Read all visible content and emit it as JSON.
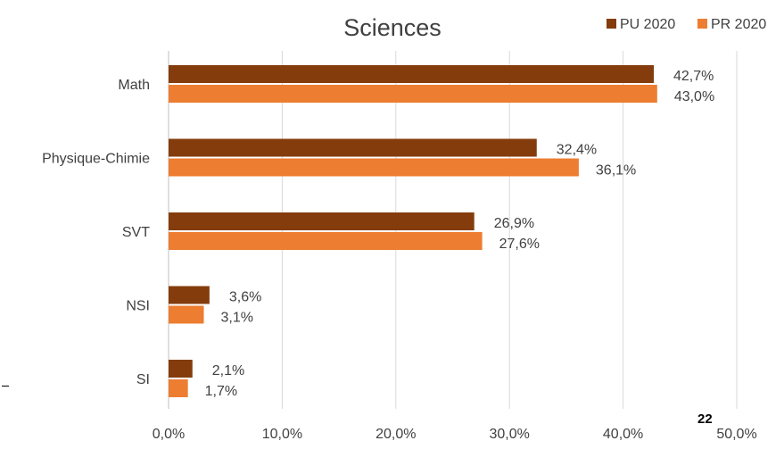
{
  "page": {
    "page_number": "22"
  },
  "chart_data": {
    "type": "bar",
    "orientation": "horizontal",
    "title": "Sciences",
    "xlabel": "",
    "ylabel": "",
    "categories": [
      "Math",
      "Physique-Chimie",
      "SVT",
      "NSI",
      "SI"
    ],
    "series": [
      {
        "name": "PU 2020",
        "color": "#843c0c",
        "values": [
          42.7,
          32.4,
          26.9,
          3.6,
          2.1
        ],
        "labels": [
          "42,7%",
          "32,4%",
          "26,9%",
          "3,6%",
          "2,1%"
        ]
      },
      {
        "name": "PR 2020",
        "color": "#ed7d31",
        "values": [
          43.0,
          36.1,
          27.6,
          3.1,
          1.7
        ],
        "labels": [
          "43,0%",
          "36,1%",
          "27,6%",
          "3,1%",
          "1,7%"
        ]
      }
    ],
    "xlim": [
      0,
      50
    ],
    "xticks": [
      0,
      10,
      20,
      30,
      40,
      50
    ],
    "xtick_labels": [
      "0,0%",
      "10,0%",
      "20,0%",
      "30,0%",
      "40,0%",
      "50,0%"
    ],
    "grid": true,
    "legend_position": "top-right"
  }
}
